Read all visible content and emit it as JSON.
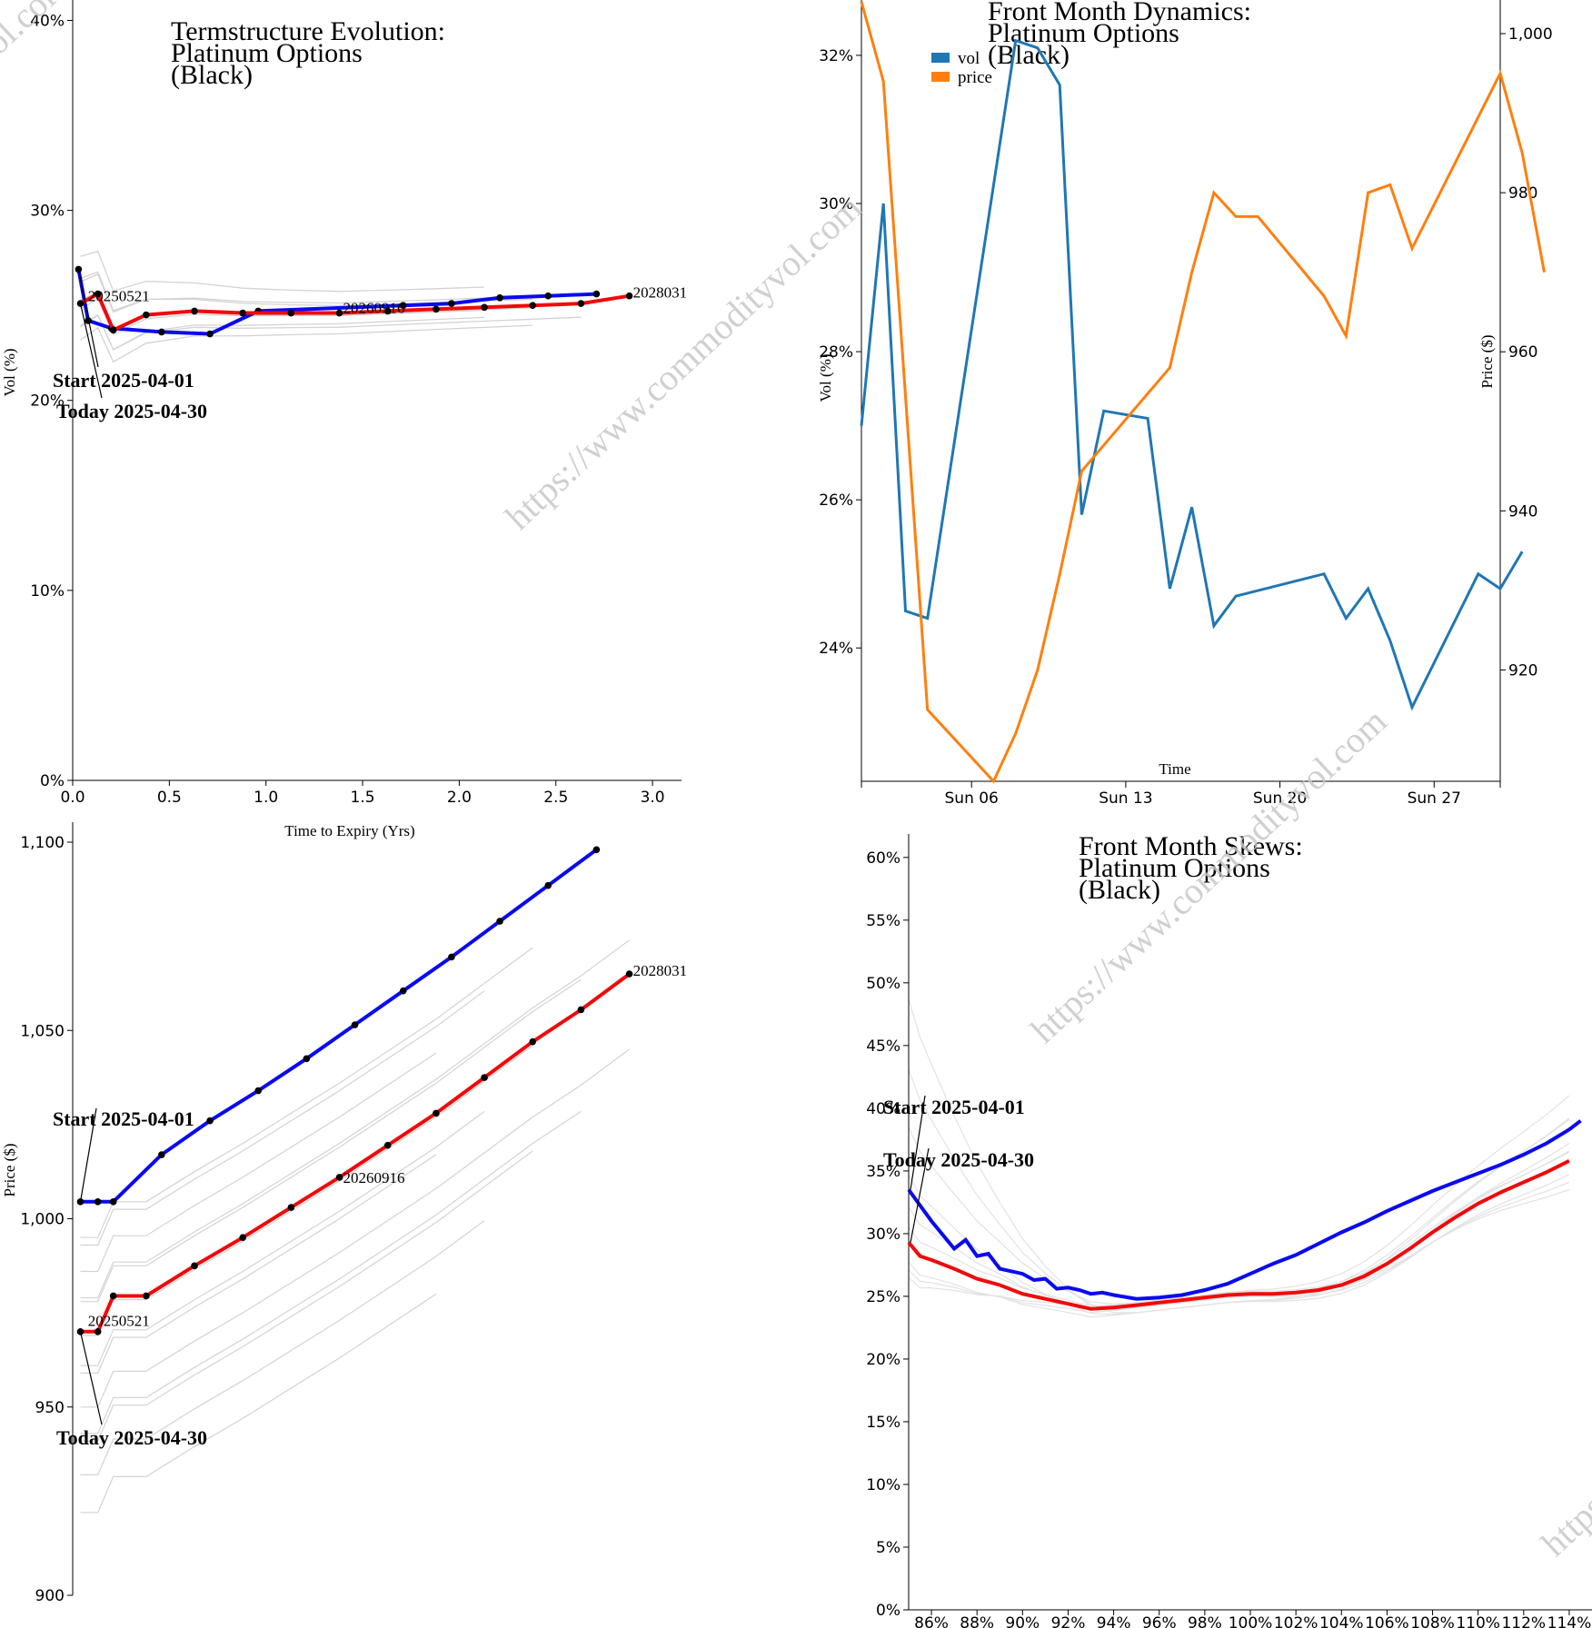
{
  "colors": {
    "start": "#0a0af0",
    "today": "#f00a0a",
    "history": "#d3d3d3",
    "vol": "#1f77b4",
    "price": "#ff7f0e"
  },
  "watermark": "https://www.commodityvol.com",
  "chart_data": [
    {
      "id": "termstructure-vol",
      "type": "line",
      "title": [
        "Termstructure Evolution:",
        "Platinum Options",
        "(Black)"
      ],
      "xlabel": "Time to Expiry (Yrs)",
      "ylabel": "Vol (%)",
      "xlim": [
        0,
        3.15
      ],
      "ylim": [
        0,
        40.5
      ],
      "xticks": [
        0.0,
        0.5,
        1.0,
        1.5,
        2.0,
        2.5,
        3.0
      ],
      "xticklabels": [
        "0.0",
        "0.5",
        "1.0",
        "1.5",
        "2.0",
        "2.5",
        "3.0"
      ],
      "yticks": [
        0,
        10,
        20,
        30,
        40
      ],
      "yticklabels": [
        "0%",
        "10%",
        "20%",
        "30%",
        "40%"
      ],
      "series": [
        {
          "name": "Start 2025-04-01",
          "x": [
            0.03,
            0.08,
            0.2,
            0.46,
            0.71,
            0.96,
            1.71,
            1.96,
            2.21,
            2.46,
            2.71
          ],
          "y": [
            26.9,
            24.2,
            23.8,
            23.6,
            23.5,
            24.7,
            25.0,
            25.1,
            25.4,
            25.5,
            25.6
          ]
        },
        {
          "name": "Today 2025-04-30",
          "x": [
            0.04,
            0.13,
            0.21,
            0.38,
            0.63,
            0.88,
            1.13,
            1.38,
            1.63,
            1.88,
            2.13,
            2.38,
            2.63,
            2.88
          ],
          "y": [
            25.1,
            25.6,
            23.7,
            24.5,
            24.7,
            24.6,
            24.6,
            24.6,
            24.7,
            24.8,
            24.9,
            25.0,
            25.1,
            25.5
          ]
        }
      ],
      "annotations": [
        "Start 2025-04-01",
        "Today 2025-04-30"
      ],
      "contract_labels": [
        {
          "text": "20250521",
          "x": 0.06,
          "y": 25.5
        },
        {
          "text": "20260916",
          "x": 1.38,
          "y": 24.9
        },
        {
          "text": "2028031",
          "x": 2.88,
          "y": 25.7
        }
      ]
    },
    {
      "id": "front-month-dynamics",
      "type": "line",
      "title": [
        "Front Month Dynamics:",
        "Platinum Options",
        "(Black)"
      ],
      "xlabel": "Time",
      "ylabel": "Vol (%)",
      "y2label": "Price ($)",
      "xticklabels": [
        "Sun 06",
        "Sun 13",
        "Sun 20",
        "Sun 27"
      ],
      "xlim_days": [
        1.0,
        30.0
      ],
      "xticks_days": [
        6,
        13,
        20,
        27
      ],
      "ylim": [
        22.2,
        32.6
      ],
      "yticks": [
        24,
        26,
        28,
        30,
        32
      ],
      "yticklabels": [
        "24%",
        "26%",
        "28%",
        "30%",
        "32%"
      ],
      "y2lim": [
        906,
        1004
      ],
      "y2ticks": [
        920,
        940,
        960,
        980,
        1000
      ],
      "y2ticklabels": [
        "920",
        "940",
        "960",
        "980",
        "1,000"
      ],
      "legend": [
        "vol",
        "price"
      ],
      "legend_position": "top-left",
      "series": [
        {
          "name": "vol",
          "axis": "left",
          "x": [
            1,
            2,
            3,
            4,
            8,
            9,
            10,
            11,
            12,
            14,
            15,
            16,
            17,
            18,
            22,
            23,
            24,
            25,
            26,
            29,
            30,
            31
          ],
          "y": [
            27.0,
            30.0,
            24.5,
            24.4,
            32.2,
            32.1,
            31.6,
            25.8,
            27.2,
            27.1,
            24.8,
            25.9,
            24.3,
            24.7,
            25.0,
            24.4,
            24.8,
            24.1,
            23.2,
            25.0,
            24.8,
            25.3
          ]
        },
        {
          "name": "price",
          "axis": "right",
          "x": [
            1,
            2,
            4,
            7,
            8,
            9,
            10,
            11,
            15,
            16,
            17,
            18,
            19,
            22,
            23,
            24,
            25,
            26,
            30,
            31,
            32
          ],
          "y": [
            1004.0,
            994.0,
            915.0,
            906.0,
            912.0,
            920.0,
            932.0,
            945.0,
            958.0,
            970.0,
            980.0,
            977.0,
            977.0,
            967.0,
            962.0,
            980.0,
            981.0,
            973.0,
            995.0,
            985.0,
            970.0
          ]
        }
      ]
    },
    {
      "id": "termstructure-price",
      "type": "line",
      "xlabel": "",
      "ylabel": "Price ($)",
      "xlim": [
        0,
        3.15
      ],
      "ylim": [
        900,
        1100
      ],
      "yticks": [
        900,
        950,
        1000,
        1050,
        1100
      ],
      "yticklabels": [
        "900",
        "950",
        "1,000",
        "1,050",
        "1,100"
      ],
      "series": [
        {
          "name": "Start 2025-04-01",
          "x": [
            0.04,
            0.13,
            0.21,
            0.46,
            0.71,
            0.96,
            1.21,
            1.46,
            1.71,
            1.96,
            2.21,
            2.46,
            2.71
          ],
          "y": [
            1004.5,
            1004.5,
            1004.5,
            1017.0,
            1026.0,
            1034.0,
            1042.5,
            1051.5,
            1060.5,
            1069.5,
            1079.0,
            1088.5,
            1098.0
          ]
        },
        {
          "name": "Today 2025-04-30",
          "x": [
            0.04,
            0.13,
            0.21,
            0.38,
            0.63,
            0.88,
            1.13,
            1.38,
            1.63,
            1.88,
            2.13,
            2.38,
            2.63,
            2.88
          ],
          "y": [
            970.0,
            970.0,
            979.5,
            979.5,
            987.5,
            995.0,
            1003.0,
            1011.0,
            1019.5,
            1028.0,
            1037.5,
            1047.0,
            1055.5,
            1065.0
          ]
        }
      ],
      "annotations": [
        "Start 2025-04-01",
        "Today 2025-04-30"
      ],
      "contract_labels": [
        {
          "text": "20250521",
          "x": 0.06,
          "y": 973.0
        },
        {
          "text": "20260916",
          "x": 1.38,
          "y": 1011.0
        },
        {
          "text": "2028031",
          "x": 2.88,
          "y": 1066.0
        }
      ]
    },
    {
      "id": "front-month-skews",
      "type": "line",
      "title": [
        "Front Month Skews:",
        "Platinum Options",
        "(Black)"
      ],
      "xlabel": "",
      "ylabel": "",
      "xlim": [
        85,
        115
      ],
      "xticks": [
        86,
        88,
        90,
        92,
        94,
        96,
        98,
        100,
        102,
        104,
        106,
        108,
        110,
        112,
        114
      ],
      "xticklabels": [
        "86%",
        "88%",
        "90%",
        "92%",
        "94%",
        "96%",
        "98%",
        "100%",
        "102%",
        "104%",
        "106%",
        "108%",
        "110%",
        "112%",
        "114%"
      ],
      "ylim": [
        0,
        61
      ],
      "yticks": [
        0,
        5,
        10,
        15,
        20,
        25,
        30,
        35,
        40,
        45,
        50,
        55,
        60
      ],
      "yticklabels": [
        "0%",
        "5%",
        "10%",
        "15%",
        "20%",
        "25%",
        "30%",
        "35%",
        "40%",
        "45%",
        "50%",
        "55%",
        "60%"
      ],
      "series": [
        {
          "name": "Start 2025-04-01",
          "x": [
            85.0,
            86.0,
            87.0,
            87.5,
            88.0,
            88.5,
            89.0,
            89.5,
            90.0,
            90.5,
            91.0,
            91.5,
            92.0,
            92.5,
            93.0,
            93.5,
            94.0,
            95.0,
            96.0,
            97.0,
            98.0,
            99.0,
            100.0,
            101.0,
            102.0,
            103.0,
            104.0,
            105.0,
            106.0,
            107.0,
            108.0,
            109.0,
            110.0,
            111.0,
            112.0,
            113.0,
            114.0,
            114.5
          ],
          "y": [
            33.5,
            31.0,
            28.8,
            29.5,
            28.2,
            28.4,
            27.2,
            27.0,
            26.8,
            26.3,
            26.4,
            25.6,
            25.7,
            25.5,
            25.2,
            25.3,
            25.1,
            24.8,
            24.9,
            25.1,
            25.5,
            26.0,
            26.8,
            27.6,
            28.3,
            29.2,
            30.1,
            30.9,
            31.8,
            32.6,
            33.4,
            34.1,
            34.8,
            35.5,
            36.3,
            37.2,
            38.3,
            39.0
          ]
        },
        {
          "name": "Today 2025-04-30",
          "x": [
            85.0,
            85.5,
            86.0,
            87.0,
            88.0,
            89.0,
            90.0,
            91.0,
            92.0,
            93.0,
            94.0,
            95.0,
            96.0,
            97.0,
            98.0,
            99.0,
            100.0,
            101.0,
            102.0,
            103.0,
            104.0,
            105.0,
            106.0,
            107.0,
            108.0,
            109.0,
            110.0,
            111.0,
            112.0,
            113.0,
            114.0
          ],
          "y": [
            29.3,
            28.2,
            27.9,
            27.2,
            26.4,
            25.9,
            25.2,
            24.8,
            24.4,
            24.0,
            24.1,
            24.3,
            24.5,
            24.7,
            24.9,
            25.1,
            25.2,
            25.2,
            25.3,
            25.5,
            25.9,
            26.6,
            27.6,
            28.8,
            30.1,
            31.3,
            32.4,
            33.3,
            34.1,
            34.9,
            35.8
          ]
        }
      ],
      "annotations": [
        "Start 2025-04-01",
        "Today 2025-04-30"
      ]
    }
  ]
}
